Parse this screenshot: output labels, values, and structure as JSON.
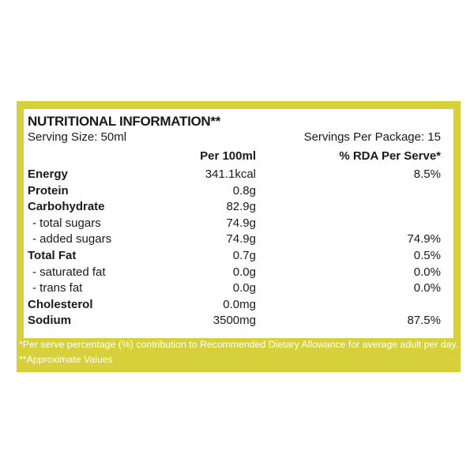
{
  "label": {
    "title": "NUTRITIONAL INFORMATION**",
    "serving_size": "Serving Size: 50ml",
    "servings_per_package": "Servings Per Package: 15",
    "columns": {
      "per_100ml": "Per 100ml",
      "rda_per_serve": "% RDA Per Serve*"
    },
    "rows": [
      {
        "nutrient": "Energy",
        "per_100ml": "341.1kcal",
        "rda": "8.5%"
      },
      {
        "nutrient": "Protein",
        "per_100ml": "0.8g",
        "rda": ""
      },
      {
        "nutrient": "Carbohydrate",
        "per_100ml": "82.9g",
        "rda": ""
      },
      {
        "nutrient": "- total sugars",
        "per_100ml": "74.9g",
        "rda": ""
      },
      {
        "nutrient": "- added sugars",
        "per_100ml": "74.9g",
        "rda": "74.9%"
      },
      {
        "nutrient": "Total Fat",
        "per_100ml": "0.7g",
        "rda": "0.5%"
      },
      {
        "nutrient": "- saturated fat",
        "per_100ml": "0.0g",
        "rda": "0.0%"
      },
      {
        "nutrient": "- trans fat",
        "per_100ml": "0.0g",
        "rda": "0.0%"
      },
      {
        "nutrient": "Cholesterol",
        "per_100ml": "0.0mg",
        "rda": ""
      },
      {
        "nutrient": "Sodium",
        "per_100ml": "3500mg",
        "rda": "87.5%"
      }
    ],
    "footnotes": [
      "*Per serve percentage (%) contribution to Recommended  Dietary Allowance for average adult per day.",
      "**Approximate Values"
    ]
  },
  "colors": {
    "border": "#d6d13a",
    "panel": "#ffffff",
    "text": "#1a1a1a",
    "footnote_text": "#ffffff"
  }
}
